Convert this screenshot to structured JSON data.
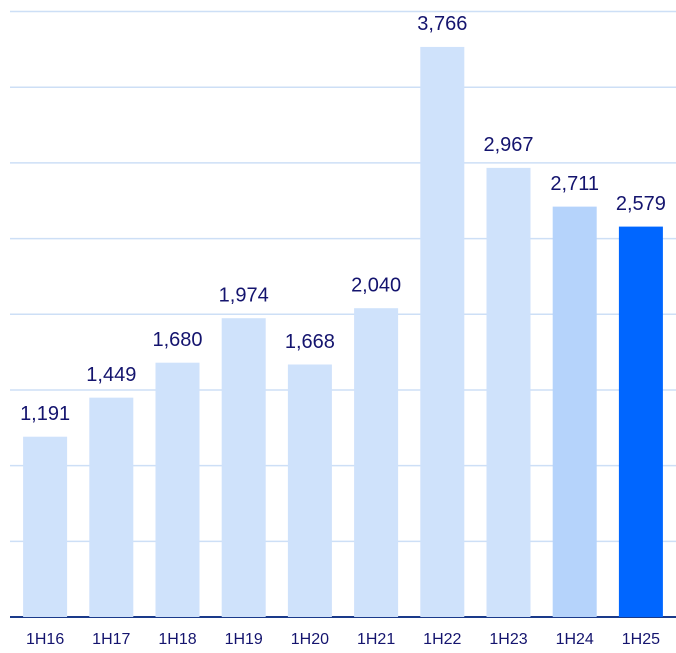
{
  "chart_data": {
    "type": "bar",
    "categories": [
      "1H16",
      "1H17",
      "1H18",
      "1H19",
      "1H20",
      "1H21",
      "1H22",
      "1H23",
      "1H24",
      "1H25"
    ],
    "values": [
      1191,
      1449,
      1680,
      1974,
      1668,
      2040,
      3766,
      2967,
      2711,
      2579
    ],
    "value_labels": [
      "1,191",
      "1,449",
      "1,680",
      "1,974",
      "1,668",
      "2,040",
      "3,766",
      "2,967",
      "2,711",
      "2,579"
    ],
    "colors": [
      "#cfe2fb",
      "#cfe2fb",
      "#cfe2fb",
      "#cfe2fb",
      "#cfe2fb",
      "#cfe2fb",
      "#cfe2fb",
      "#cfe2fb",
      "#b5d3fb",
      "#0066ff"
    ],
    "ylim": [
      0,
      4000
    ],
    "yticks": [
      0,
      500,
      1000,
      1500,
      2000,
      2500,
      3000,
      3500,
      4000
    ],
    "grid": true
  }
}
